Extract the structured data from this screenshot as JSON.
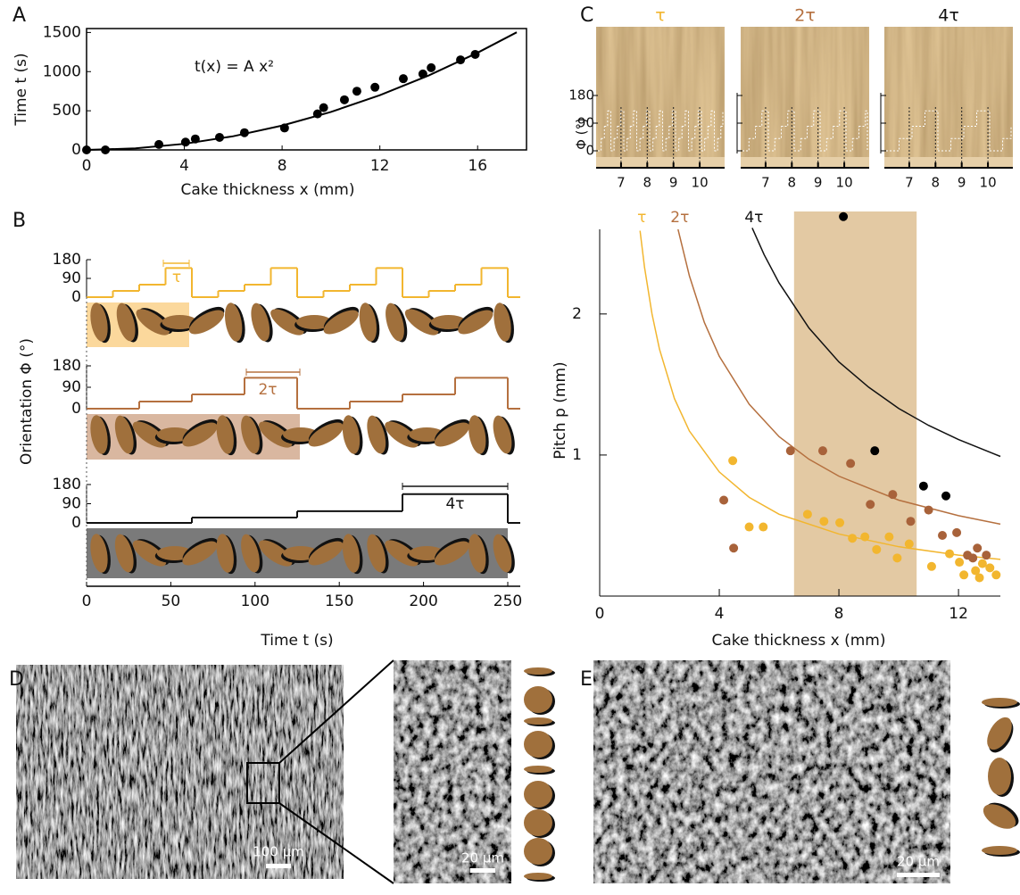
{
  "panel_labels": [
    "A",
    "B",
    "C",
    "D",
    "E"
  ],
  "chart_data": [
    {
      "type": "scatter",
      "xlabel": "Cake thickness  x (mm)",
      "ylabel": "Time t (s)",
      "annotation": "t(x) = A x²",
      "xlim": [
        0,
        18
      ],
      "ylim": [
        0,
        1550
      ],
      "xticks": [
        0,
        4,
        8,
        12,
        16
      ],
      "yticks": [
        0,
        500,
        1000,
        1500
      ],
      "color": "#000000",
      "series": [
        {
          "type": "scatter",
          "x": [
            0,
            0.77,
            2.96,
            4.05,
            4.45,
            5.44,
            6.46,
            8.1,
            9.45,
            9.7,
            10.55,
            11.06,
            11.8,
            12.96,
            13.76,
            14.1,
            15.3,
            15.9
          ],
          "values": [
            0,
            0,
            70,
            100,
            140,
            160,
            220,
            280,
            460,
            540,
            640,
            750,
            800,
            910,
            970,
            1050,
            1150,
            1220
          ]
        },
        {
          "type": "line",
          "x": [
            0,
            2,
            4,
            6,
            8,
            10,
            12,
            14,
            16,
            17.6
          ],
          "values": [
            0,
            19.4,
            77.6,
            174.6,
            310.4,
            485,
            698.4,
            950.6,
            1241.6,
            1502.3
          ]
        }
      ]
    },
    {
      "type": "step",
      "annotation": "τ",
      "color": "#f2b62f",
      "xlim": [
        0,
        250
      ],
      "ylim": [
        0,
        180
      ],
      "yticks": [
        0,
        90,
        180
      ],
      "x": [
        0,
        15.625,
        31.25,
        46.875,
        62.5,
        78.125,
        93.75,
        109.375,
        125,
        140.625,
        156.25,
        171.875,
        187.5,
        203.125,
        218.75,
        234.375,
        250
      ],
      "values": [
        0,
        30,
        60,
        140,
        0,
        30,
        60,
        140,
        0,
        30,
        60,
        140,
        0,
        30,
        60,
        140,
        0
      ]
    },
    {
      "type": "step",
      "annotation": "2τ",
      "ylabel": "Orientation Φ (°)",
      "color": "#b5703f",
      "xlim": [
        0,
        250
      ],
      "ylim": [
        0,
        180
      ],
      "yticks": [
        0,
        90,
        180
      ],
      "x": [
        0,
        31.25,
        62.5,
        93.75,
        125,
        156.25,
        187.5,
        218.75,
        250
      ],
      "values": [
        0,
        30,
        60,
        130,
        0,
        30,
        60,
        130,
        0
      ]
    },
    {
      "type": "step",
      "annotation": "4τ",
      "xlabel": "Time t (s)",
      "color": "#111111",
      "xlim": [
        0,
        250
      ],
      "ylim": [
        0,
        180
      ],
      "yticks": [
        0,
        90,
        180
      ],
      "xticks": [
        0,
        50,
        100,
        150,
        200,
        250
      ],
      "x": [
        0,
        62.5,
        125,
        187.5,
        250
      ],
      "values": [
        0,
        25,
        55,
        135,
        0
      ]
    },
    {
      "type": "pitch",
      "xlabel": "Cake thickness x (mm)",
      "ylabel": "Pitch p (mm)",
      "xlim": [
        0,
        13.4
      ],
      "ylim": [
        0,
        2.6
      ],
      "xticks": [
        0,
        4,
        8,
        12
      ],
      "yticks": [
        1,
        2
      ],
      "shaded_range": [
        6.5,
        10.6
      ],
      "shade_color": "#e3c9a3",
      "series": [
        {
          "type": "line",
          "name": "τ",
          "color": "#f2b62f",
          "x": [
            1.35,
            1.5,
            1.75,
            2,
            2.5,
            3,
            4,
            5,
            6,
            8,
            10,
            12,
            13.4
          ],
          "values": [
            2.59,
            2.33,
            2.0,
            1.75,
            1.4,
            1.17,
            0.88,
            0.7,
            0.58,
            0.44,
            0.35,
            0.29,
            0.26
          ]
        },
        {
          "type": "line",
          "name": "2τ",
          "color": "#b5703f",
          "x": [
            2.62,
            3,
            3.5,
            4,
            5,
            6,
            7,
            8,
            10,
            12,
            13.4
          ],
          "values": [
            2.6,
            2.27,
            1.94,
            1.7,
            1.36,
            1.13,
            0.97,
            0.85,
            0.68,
            0.57,
            0.51
          ]
        },
        {
          "type": "line",
          "name": "4τ",
          "color": "#111111",
          "x": [
            5.1,
            5.5,
            6,
            7,
            8,
            9,
            10,
            11,
            12,
            13.4
          ],
          "values": [
            2.61,
            2.42,
            2.22,
            1.9,
            1.66,
            1.48,
            1.33,
            1.21,
            1.11,
            0.99
          ]
        },
        {
          "type": "scatter",
          "color": "#f2b62f",
          "x": [
            4.45,
            5.0,
            5.47,
            6.95,
            7.5,
            8.03,
            8.45,
            8.87,
            9.26,
            9.68,
            9.95,
            10.35,
            11.1,
            11.7,
            12.03,
            12.18,
            12.57,
            12.8,
            13.05,
            13.26,
            12.7
          ],
          "values": [
            0.96,
            0.49,
            0.49,
            0.58,
            0.53,
            0.52,
            0.41,
            0.42,
            0.33,
            0.42,
            0.27,
            0.37,
            0.21,
            0.3,
            0.24,
            0.15,
            0.18,
            0.23,
            0.2,
            0.15,
            0.13
          ]
        },
        {
          "type": "scatter",
          "color": "#a8623a",
          "x": [
            4.15,
            4.48,
            6.38,
            7.46,
            8.39,
            9.05,
            9.8,
            10.4,
            11.0,
            11.46,
            11.94,
            12.3,
            12.48,
            12.63,
            12.93
          ],
          "values": [
            0.68,
            0.34,
            1.03,
            1.03,
            0.94,
            0.65,
            0.72,
            0.53,
            0.61,
            0.43,
            0.45,
            0.29,
            0.27,
            0.34,
            0.29
          ]
        },
        {
          "type": "scatter",
          "color": "#000000",
          "x": [
            8.15,
            9.2,
            10.83,
            11.58
          ],
          "values": [
            2.69,
            1.03,
            0.78,
            0.71
          ]
        }
      ]
    }
  ],
  "panel_c": {
    "ylabel": "Φ (°)",
    "ylim": [
      0,
      180
    ],
    "yticks": [
      0,
      90,
      180
    ],
    "xlim": [
      6.05,
      10.95
    ],
    "xticks": [
      7,
      8,
      9,
      10
    ],
    "images": [
      {
        "label": "τ",
        "color": "#f2b62f"
      },
      {
        "label": "2τ",
        "color": "#b5703f"
      },
      {
        "label": "4τ",
        "color": "#111111"
      }
    ]
  },
  "panel_d": {
    "scale_bars": [
      "100 µm",
      "20 µm"
    ]
  },
  "panel_e": {
    "scale_bar": "20 µm"
  }
}
